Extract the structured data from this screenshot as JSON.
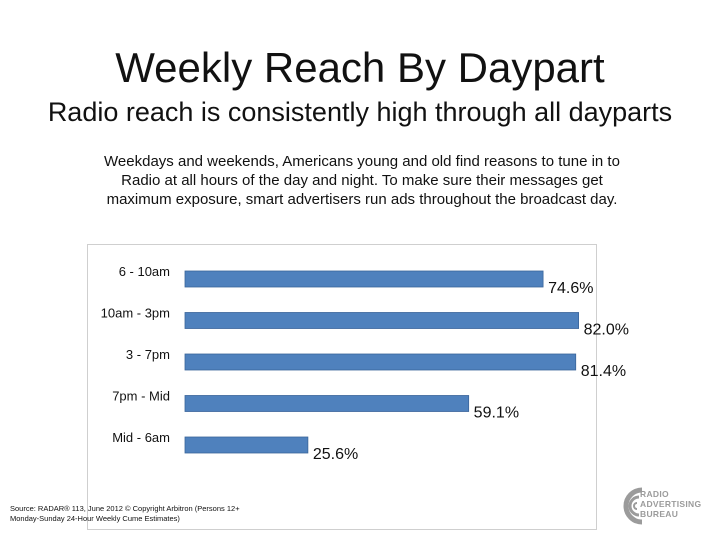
{
  "title": "Weekly Reach By Daypart",
  "subtitle": "Radio reach is consistently high through all dayparts",
  "body_text": "Weekdays and weekends, Americans young and old find reasons to tune in to Radio at all hours of the day and night. To make sure their messages get maximum exposure, smart advertisers run ads  throughout the broadcast day.",
  "source": "Source: RADAR® 113, June 2012 © Copyright Arbitron (Persons 12+ Monday-Sunday 24-Hour Weekly Cume Estimates)",
  "logo": {
    "lines": [
      "RADIO",
      "ADVERTISING",
      "BUREAU"
    ],
    "icon": "rab-swirl-logo-icon"
  },
  "colors": {
    "bar_fill": "#4f81bd",
    "bar_stroke": "#3a659a",
    "logo_gray": "#9b9b9b"
  },
  "chart_data": {
    "type": "bar",
    "orientation": "horizontal",
    "categories": [
      "6 - 10am",
      "10am - 3pm",
      "3 - 7pm",
      "7pm - Mid",
      "Mid - 6am"
    ],
    "values": [
      74.6,
      82.0,
      81.4,
      59.1,
      25.6
    ],
    "value_labels": [
      "74.6%",
      "82.0%",
      "81.4%",
      "59.1%",
      "25.6%"
    ],
    "title": "",
    "xlabel": "",
    "ylabel": "",
    "xlim": [
      0,
      100
    ],
    "grid": false,
    "legend": "none"
  }
}
